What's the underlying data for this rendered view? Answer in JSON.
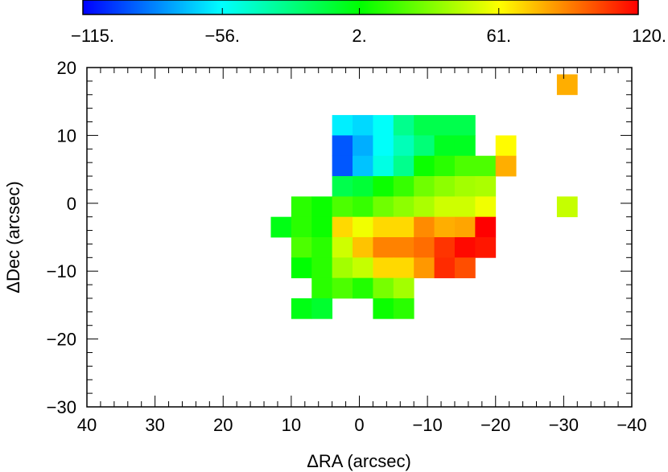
{
  "chart_data": {
    "type": "heatmap",
    "title": "",
    "xlabel": "ΔRA (arcsec)",
    "ylabel": "ΔDec (arcsec)",
    "xlim": [
      40,
      -40
    ],
    "ylim": [
      -30,
      20
    ],
    "x_ticks": [
      40,
      30,
      20,
      10,
      0,
      -10,
      -20,
      -30,
      -40
    ],
    "x_tick_labels": [
      "40",
      "30",
      "20",
      "10",
      "0",
      "−10",
      "−20",
      "−30",
      "−40"
    ],
    "y_ticks": [
      20,
      10,
      0,
      -10,
      -20,
      -30
    ],
    "y_tick_labels": [
      "20",
      "10",
      "0",
      "−10",
      "−20",
      "−30"
    ],
    "pixel_size_arcsec": 3,
    "colorbar": {
      "min": -115,
      "max": 120,
      "ticks": [
        -115,
        -56,
        2,
        61,
        120
      ],
      "tick_labels": [
        "−115.",
        "−56.",
        "2.",
        "61.",
        "120."
      ],
      "colormap": [
        "#0000ff",
        "#00ffff",
        "#00ff00",
        "#ffff00",
        "#ff0000"
      ]
    },
    "grid": false,
    "cells": [
      {
        "x": 2.5,
        "y": 11.5,
        "v": -60
      },
      {
        "x": -0.5,
        "y": 11.5,
        "v": -65
      },
      {
        "x": -3.5,
        "y": 11.5,
        "v": -55
      },
      {
        "x": -6.5,
        "y": 11.5,
        "v": -30
      },
      {
        "x": -9.5,
        "y": 11.5,
        "v": -15
      },
      {
        "x": -12.5,
        "y": 11.5,
        "v": -15
      },
      {
        "x": -15.5,
        "y": 11.5,
        "v": -15
      },
      {
        "x": 2.5,
        "y": 8.5,
        "v": -95
      },
      {
        "x": -0.5,
        "y": 8.5,
        "v": -75
      },
      {
        "x": -3.5,
        "y": 8.5,
        "v": -55
      },
      {
        "x": -6.5,
        "y": 8.5,
        "v": -40
      },
      {
        "x": -9.5,
        "y": 8.5,
        "v": -25
      },
      {
        "x": -12.5,
        "y": 8.5,
        "v": -5
      },
      {
        "x": -15.5,
        "y": 8.5,
        "v": -5
      },
      {
        "x": -21.5,
        "y": 8.5,
        "v": 62
      },
      {
        "x": 2.5,
        "y": 5.5,
        "v": -95
      },
      {
        "x": -0.5,
        "y": 5.5,
        "v": -70
      },
      {
        "x": -3.5,
        "y": 5.5,
        "v": -50
      },
      {
        "x": -6.5,
        "y": 5.5,
        "v": -30
      },
      {
        "x": -9.5,
        "y": 5.5,
        "v": 5
      },
      {
        "x": -12.5,
        "y": 5.5,
        "v": 12
      },
      {
        "x": -15.5,
        "y": 5.5,
        "v": 20
      },
      {
        "x": -18.5,
        "y": 5.5,
        "v": 20
      },
      {
        "x": -21.5,
        "y": 5.5,
        "v": 80
      },
      {
        "x": 2.5,
        "y": 2.5,
        "v": -15
      },
      {
        "x": -0.5,
        "y": 2.5,
        "v": -10
      },
      {
        "x": -3.5,
        "y": 2.5,
        "v": 5
      },
      {
        "x": -6.5,
        "y": 2.5,
        "v": 15
      },
      {
        "x": -9.5,
        "y": 2.5,
        "v": 28
      },
      {
        "x": -12.5,
        "y": 2.5,
        "v": 35
      },
      {
        "x": -15.5,
        "y": 2.5,
        "v": 40
      },
      {
        "x": -18.5,
        "y": 2.5,
        "v": 42
      },
      {
        "x": 8.5,
        "y": -0.5,
        "v": 12
      },
      {
        "x": 5.5,
        "y": -0.5,
        "v": 5
      },
      {
        "x": 2.5,
        "y": -0.5,
        "v": 20
      },
      {
        "x": -0.5,
        "y": -0.5,
        "v": 15
      },
      {
        "x": -3.5,
        "y": -0.5,
        "v": 28
      },
      {
        "x": -6.5,
        "y": -0.5,
        "v": 35
      },
      {
        "x": -9.5,
        "y": -0.5,
        "v": 42
      },
      {
        "x": -12.5,
        "y": -0.5,
        "v": 50
      },
      {
        "x": -15.5,
        "y": -0.5,
        "v": 50
      },
      {
        "x": -18.5,
        "y": -0.5,
        "v": 58
      },
      {
        "x": -30.5,
        "y": -0.5,
        "v": 48
      },
      {
        "x": 11.5,
        "y": -3.5,
        "v": -2
      },
      {
        "x": 8.5,
        "y": -3.5,
        "v": 12
      },
      {
        "x": 5.5,
        "y": -3.5,
        "v": 5
      },
      {
        "x": 2.5,
        "y": -3.5,
        "v": 70
      },
      {
        "x": -0.5,
        "y": -3.5,
        "v": 58
      },
      {
        "x": -3.5,
        "y": -3.5,
        "v": 70
      },
      {
        "x": -6.5,
        "y": -3.5,
        "v": 70
      },
      {
        "x": -9.5,
        "y": -3.5,
        "v": 88
      },
      {
        "x": -12.5,
        "y": -3.5,
        "v": 80
      },
      {
        "x": -15.5,
        "y": -3.5,
        "v": 82
      },
      {
        "x": -18.5,
        "y": -3.5,
        "v": 120
      },
      {
        "x": 8.5,
        "y": -6.5,
        "v": 20
      },
      {
        "x": 5.5,
        "y": -6.5,
        "v": 12
      },
      {
        "x": 2.5,
        "y": -6.5,
        "v": 50
      },
      {
        "x": -0.5,
        "y": -6.5,
        "v": 75
      },
      {
        "x": -3.5,
        "y": -6.5,
        "v": 90
      },
      {
        "x": -6.5,
        "y": -6.5,
        "v": 90
      },
      {
        "x": -9.5,
        "y": -6.5,
        "v": 95
      },
      {
        "x": -12.5,
        "y": -6.5,
        "v": 108
      },
      {
        "x": -15.5,
        "y": -6.5,
        "v": 118
      },
      {
        "x": -18.5,
        "y": -6.5,
        "v": 115
      },
      {
        "x": 8.5,
        "y": -9.5,
        "v": 2
      },
      {
        "x": 5.5,
        "y": -9.5,
        "v": 12
      },
      {
        "x": 2.5,
        "y": -9.5,
        "v": 40
      },
      {
        "x": -0.5,
        "y": -9.5,
        "v": 48
      },
      {
        "x": -3.5,
        "y": -9.5,
        "v": 70
      },
      {
        "x": -6.5,
        "y": -9.5,
        "v": 70
      },
      {
        "x": -9.5,
        "y": -9.5,
        "v": 85
      },
      {
        "x": -12.5,
        "y": -9.5,
        "v": 110
      },
      {
        "x": -15.5,
        "y": -9.5,
        "v": 102
      },
      {
        "x": 5.5,
        "y": -12.5,
        "v": 12
      },
      {
        "x": 2.5,
        "y": -12.5,
        "v": 20
      },
      {
        "x": -0.5,
        "y": -12.5,
        "v": 10
      },
      {
        "x": -3.5,
        "y": -12.5,
        "v": 30
      },
      {
        "x": -6.5,
        "y": -12.5,
        "v": 40
      },
      {
        "x": 8.5,
        "y": -15.5,
        "v": -2
      },
      {
        "x": 5.5,
        "y": -15.5,
        "v": -8
      },
      {
        "x": -3.5,
        "y": -15.5,
        "v": 5
      },
      {
        "x": -6.5,
        "y": -15.5,
        "v": 12
      },
      {
        "x": -30.5,
        "y": 17.5,
        "v": 80
      }
    ]
  }
}
